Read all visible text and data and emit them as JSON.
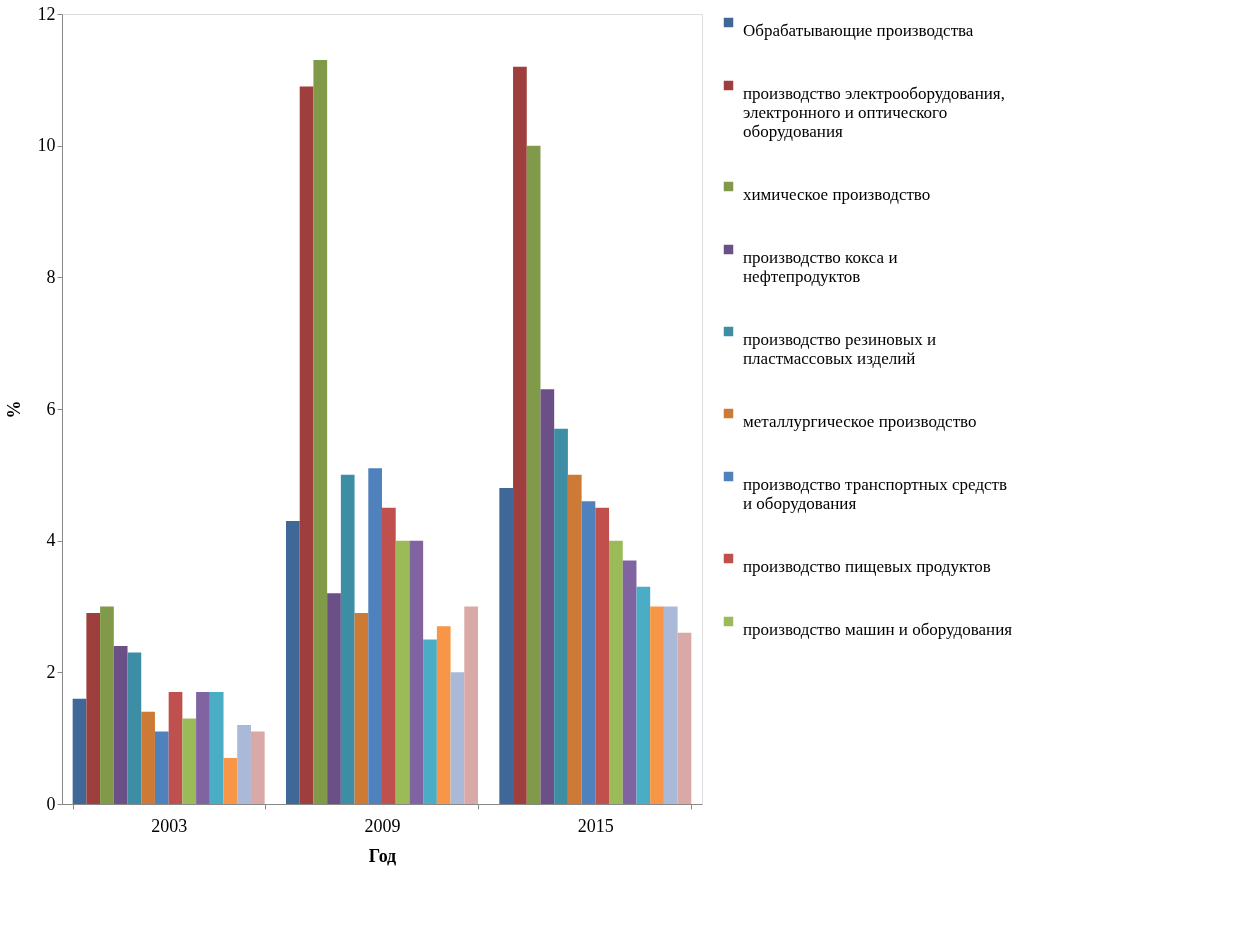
{
  "chart_data": {
    "type": "bar",
    "xlabel": "Год",
    "ylabel": "%",
    "categories": [
      "2003",
      "2009",
      "2015"
    ],
    "ylim": [
      0,
      12
    ],
    "yticks": [
      0,
      2,
      4,
      6,
      8,
      10,
      12
    ],
    "grid": false,
    "legend": "right",
    "series": [
      {
        "name": "Обрабатывающие производства",
        "color": "#3f6797",
        "values": [
          1.6,
          4.3,
          4.8
        ]
      },
      {
        "name": "производство электрооборудования, электронного и оптического оборудования",
        "color": "#9e3f3d",
        "values": [
          2.9,
          10.9,
          11.2
        ]
      },
      {
        "name": "химическое  производство",
        "color": "#809a49",
        "values": [
          3.0,
          11.3,
          10.0
        ]
      },
      {
        "name": "производство кокса и нефтепродуктов",
        "color": "#6a5086",
        "values": [
          2.4,
          3.2,
          6.3
        ]
      },
      {
        "name": "производство резиновых и пластмассовых изделий",
        "color": "#3d8ea4",
        "values": [
          2.3,
          5.0,
          5.7
        ]
      },
      {
        "name": "металлургическое  производство",
        "color": "#cc7a36",
        "values": [
          1.4,
          2.9,
          5.0
        ]
      },
      {
        "name": "производство транспортных средств и оборудования",
        "color": "#4f81bd",
        "values": [
          1.1,
          5.1,
          4.6
        ]
      },
      {
        "name": "производство пищевых продуктов",
        "color": "#c0504d",
        "values": [
          1.7,
          4.5,
          4.5
        ]
      },
      {
        "name": "производство машин и оборудования",
        "color": "#9bbb59",
        "values": [
          1.3,
          4.0,
          4.0
        ]
      },
      {
        "color": "#8064a2",
        "values": [
          1.7,
          4.0,
          3.7
        ]
      },
      {
        "color": "#4bacc6",
        "values": [
          1.7,
          2.5,
          3.3
        ]
      },
      {
        "color": "#f79646",
        "values": [
          0.7,
          2.7,
          3.0
        ]
      },
      {
        "color": "#aab9d8",
        "values": [
          1.2,
          2.0,
          3.0
        ]
      },
      {
        "color": "#d9a9a8",
        "values": [
          1.1,
          3.0,
          2.6
        ]
      }
    ]
  }
}
